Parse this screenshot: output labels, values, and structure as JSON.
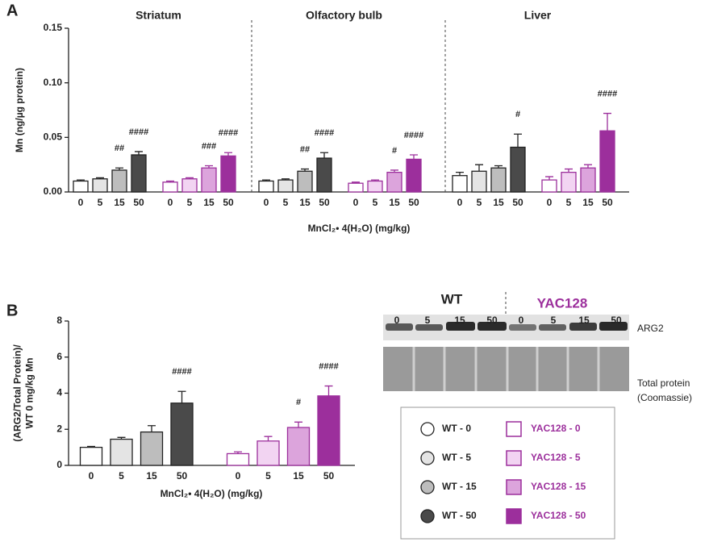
{
  "chart_data": [
    {
      "type": "bar",
      "panel": "A",
      "ylabel": "Mn (ng/µg protein)",
      "xlabel": "MnCl₂• 4(H₂O) (mg/kg)",
      "ylim": [
        0,
        0.15
      ],
      "yticks": [
        {
          "value": 0,
          "label": "0.00"
        },
        0.05,
        {
          "value": 0.1,
          "label": "0.10"
        },
        0.15
      ],
      "categories": [
        "0",
        "5",
        "15",
        "50",
        "0",
        "5",
        "15",
        "50"
      ],
      "colors": [
        "#ffffff",
        "#e4e4e4",
        "#bdbdbd",
        "#4a4a4a",
        "#ffffff",
        "#f2d4f2",
        "#dca4dc",
        "#9c2f9c"
      ],
      "edge_colors": [
        "#222222",
        "#222222",
        "#222222",
        "#222222",
        "#9c2f9c",
        "#9c2f9c",
        "#9c2f9c",
        "#9c2f9c"
      ],
      "groups": [
        {
          "name": "Striatum",
          "values": [
            0.01,
            0.012,
            0.02,
            0.034,
            0.009,
            0.012,
            0.022,
            0.033
          ],
          "errors": [
            0.001,
            0.001,
            0.002,
            0.003,
            0.001,
            0.001,
            0.002,
            0.003
          ],
          "annotations": [
            null,
            null,
            "##",
            "####",
            null,
            null,
            "###",
            "####"
          ]
        },
        {
          "name": "Olfactory bulb",
          "values": [
            0.01,
            0.011,
            0.019,
            0.031,
            0.008,
            0.01,
            0.018,
            0.03
          ],
          "errors": [
            0.001,
            0.001,
            0.002,
            0.005,
            0.001,
            0.001,
            0.002,
            0.004
          ],
          "annotations": [
            null,
            null,
            "##",
            "####",
            null,
            null,
            "#",
            "####"
          ]
        },
        {
          "name": "Liver",
          "values": [
            0.015,
            0.019,
            0.022,
            0.041,
            0.011,
            0.018,
            0.022,
            0.056
          ],
          "errors": [
            0.003,
            0.006,
            0.002,
            0.012,
            0.003,
            0.003,
            0.003,
            0.016
          ],
          "annotations": [
            null,
            null,
            null,
            "#",
            null,
            null,
            null,
            "####"
          ]
        }
      ]
    },
    {
      "type": "bar",
      "panel": "B",
      "ylabel": [
        "(ARG2/Total Protein)/",
        "WT 0 mg/kg Mn"
      ],
      "xlabel": "MnCl₂• 4(H₂O) (mg/kg)",
      "ylim": [
        0,
        8
      ],
      "yticks": [
        0,
        2,
        4,
        6,
        8
      ],
      "categories": [
        "0",
        "5",
        "15",
        "50",
        "0",
        "5",
        "15",
        "50"
      ],
      "colors": [
        "#ffffff",
        "#e4e4e4",
        "#bdbdbd",
        "#4a4a4a",
        "#ffffff",
        "#f2d4f2",
        "#dca4dc",
        "#9c2f9c"
      ],
      "edge_colors": [
        "#222222",
        "#222222",
        "#222222",
        "#222222",
        "#9c2f9c",
        "#9c2f9c",
        "#9c2f9c",
        "#9c2f9c"
      ],
      "groups": [
        {
          "values": [
            1.0,
            1.45,
            1.85,
            3.45,
            0.65,
            1.35,
            2.1,
            3.85
          ],
          "errors": [
            0.05,
            0.1,
            0.35,
            0.65,
            0.1,
            0.25,
            0.3,
            0.55
          ],
          "annotations": [
            null,
            null,
            null,
            "####",
            null,
            null,
            "#",
            "####"
          ]
        }
      ]
    }
  ],
  "blot": {
    "genotypes": [
      "WT",
      "YAC128"
    ],
    "lanes": [
      "0",
      "5",
      "15",
      "50",
      "0",
      "5",
      "15",
      "50"
    ],
    "bands": [
      "ARG2",
      "Total protein",
      "(Coomassie)"
    ]
  },
  "legend": {
    "entries": [
      {
        "name": "WT - 0",
        "shape": "circle",
        "color": "#ffffff"
      },
      {
        "name": "YAC128 - 0",
        "shape": "square",
        "color": "#ffffff"
      },
      {
        "name": "WT - 5",
        "shape": "circle",
        "color": "#e4e4e4"
      },
      {
        "name": "YAC128 - 5",
        "shape": "square",
        "color": "#f2d4f2"
      },
      {
        "name": "WT - 15",
        "shape": "circle",
        "color": "#bdbdbd"
      },
      {
        "name": "YAC128 - 15",
        "shape": "square",
        "color": "#dca4dc"
      },
      {
        "name": "WT - 50",
        "shape": "circle",
        "color": "#4a4a4a"
      },
      {
        "name": "YAC128 - 50",
        "shape": "square",
        "color": "#9c2f9c"
      }
    ]
  }
}
